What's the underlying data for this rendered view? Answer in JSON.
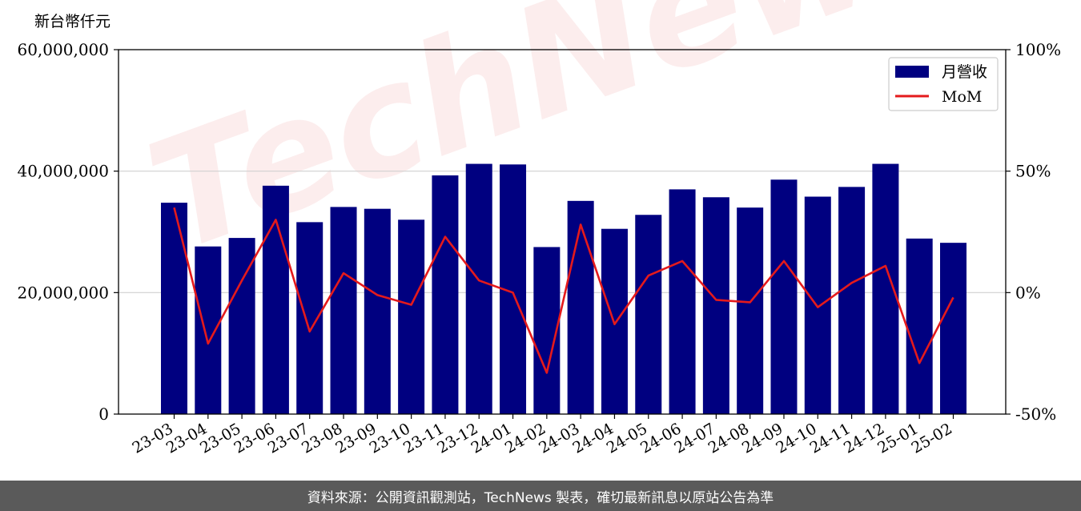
{
  "footer": {
    "source_text": "資料來源：公開資訊觀測站，TechNews 製表，確切最新訊息以原站公告為準"
  },
  "watermark": {
    "text": "TechNews"
  },
  "chart_data": {
    "type": "bar",
    "y_unit_label": "新台幣仟元",
    "categories": [
      "23-03",
      "23-04",
      "23-05",
      "23-06",
      "23-07",
      "23-08",
      "23-09",
      "23-10",
      "23-11",
      "23-12",
      "24-01",
      "24-02",
      "24-03",
      "24-04",
      "24-05",
      "24-06",
      "24-07",
      "24-08",
      "24-09",
      "24-10",
      "24-11",
      "24-12",
      "25-01",
      "25-02"
    ],
    "series": [
      {
        "name": "月營收",
        "type": "bar",
        "color": "#000080",
        "axis": "left",
        "values": [
          34800000,
          27600000,
          29000000,
          37600000,
          31600000,
          34100000,
          33800000,
          32000000,
          39300000,
          41200000,
          41100000,
          27500000,
          35100000,
          30500000,
          32800000,
          37000000,
          35700000,
          34000000,
          38600000,
          35800000,
          37400000,
          41200000,
          28900000,
          28200000
        ]
      },
      {
        "name": "MoM",
        "type": "line",
        "color": "#e41a1c",
        "axis": "right",
        "values": [
          35,
          -21,
          5,
          30,
          -16,
          8,
          -1,
          -5,
          23,
          5,
          0,
          -33,
          28,
          -13,
          7,
          13,
          -3,
          -4,
          13,
          -6,
          4,
          11,
          -29,
          -2
        ]
      }
    ],
    "y_left": {
      "ylim": [
        0,
        60000000
      ],
      "ticks": [
        "0",
        "20,000,000",
        "40,000,000",
        "60,000,000"
      ]
    },
    "y_right": {
      "ylim": [
        -50,
        100
      ],
      "ticks": [
        "-50%",
        "0%",
        "50%",
        "100%"
      ]
    },
    "grid": true,
    "legend_position": "top-right"
  }
}
